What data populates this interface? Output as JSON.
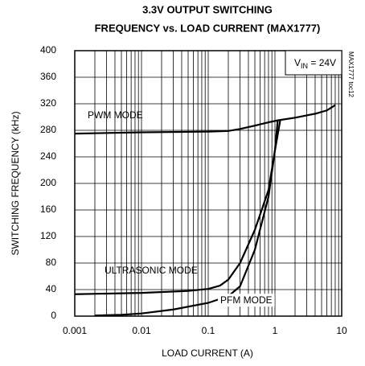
{
  "chart_data": {
    "type": "line",
    "title": [
      "3.3V OUTPUT SWITCHING",
      "FREQUENCY vs. LOAD CURRENT (MAX1777)"
    ],
    "x_label": "LOAD CURRENT (A)",
    "y_label": "SWITCHING FREQUENCY (kHz)",
    "vin_label": {
      "main": "V",
      "subscript": "IN",
      "suffix": " = 24V"
    },
    "figure_id": "MAX1777 toc12",
    "xscale": "log",
    "xlim": [
      0.001,
      10
    ],
    "xticks": [
      0.001,
      0.01,
      0.1,
      1,
      10
    ],
    "ylim": [
      0,
      400
    ],
    "yticks": [
      0,
      40,
      80,
      120,
      160,
      200,
      240,
      280,
      320,
      360,
      400
    ],
    "grid": true,
    "minor_grid": true,
    "series": [
      {
        "name": "PWM MODE",
        "color": "#000000",
        "x": [
          0.001,
          0.01,
          0.1,
          0.2,
          0.3,
          0.5,
          0.8,
          1.1,
          2,
          4,
          6,
          8
        ],
        "values": [
          275,
          277,
          278,
          279,
          282,
          287,
          292,
          295,
          299,
          305,
          310,
          318
        ]
      },
      {
        "name": "ULTRASONIC MODE",
        "color": "#000000",
        "x": [
          0.001,
          0.01,
          0.05,
          0.1,
          0.15,
          0.2,
          0.3,
          0.5,
          0.8,
          1.0,
          1.1
        ],
        "values": [
          33,
          35,
          38,
          41,
          46,
          55,
          80,
          130,
          190,
          250,
          295
        ]
      },
      {
        "name": "PFM MODE",
        "color": "#000000",
        "x": [
          0.002,
          0.005,
          0.01,
          0.03,
          0.1,
          0.2,
          0.3,
          0.5,
          0.8,
          1.0,
          1.2
        ],
        "values": [
          1,
          2,
          4,
          10,
          20,
          30,
          45,
          100,
          180,
          250,
          295
        ]
      }
    ]
  }
}
